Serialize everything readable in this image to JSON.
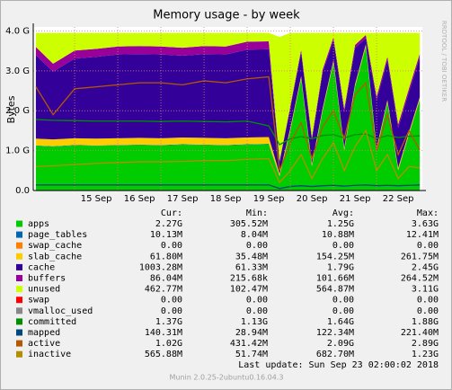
{
  "chart_data": {
    "type": "area",
    "title": "Memory usage - by week",
    "y_label": "Bytes",
    "side_note": "RRDTOOL / TOBI OETIKER",
    "last_update": "Last update:  Sun Sep 23 02:00:02 2018",
    "footer": "Munin 2.0.25-2ubuntu0.16.04.3",
    "stat_headers": [
      "Cur:",
      "Min:",
      "Avg:",
      "Max:"
    ],
    "grid": true,
    "xlim": [
      14.04,
      23.06
    ],
    "ylim": [
      0,
      4.1
    ],
    "xticks": [
      {
        "value": 15,
        "label": "15 Sep"
      },
      {
        "value": 16,
        "label": "16 Sep"
      },
      {
        "value": 17,
        "label": "17 Sep"
      },
      {
        "value": 18,
        "label": "18 Sep"
      },
      {
        "value": 19,
        "label": "19 Sep"
      },
      {
        "value": 20,
        "label": "20 Sep"
      },
      {
        "value": 21,
        "label": "21 Sep"
      },
      {
        "value": 22,
        "label": "22 Sep"
      }
    ],
    "yticks": [
      {
        "value": 0,
        "label": "0.0"
      },
      {
        "value": 1,
        "label": "1.0 G"
      },
      {
        "value": 2,
        "label": "2.0 G"
      },
      {
        "value": 3,
        "label": "3.0 G"
      },
      {
        "value": 4,
        "label": "4.0 G"
      }
    ],
    "x": [
      14.1,
      14.5,
      15,
      15.5,
      16,
      16.5,
      17,
      17.5,
      18,
      18.5,
      19,
      19.5,
      19.75,
      20,
      20.25,
      20.5,
      20.75,
      21,
      21.25,
      21.5,
      21.75,
      22,
      22.25,
      22.5,
      22.75,
      23
    ],
    "series": [
      {
        "name": "apps",
        "style": "area",
        "color": "#00cc00",
        "stats": [
          "2.27G",
          "305.52M",
          "1.25G",
          "3.63G"
        ],
        "values": [
          1.12,
          1.1,
          1.13,
          1.12,
          1.13,
          1.14,
          1.13,
          1.15,
          1.14,
          1.13,
          1.15,
          1.16,
          0.35,
          1.5,
          2.8,
          0.6,
          2.0,
          3.2,
          1.0,
          2.6,
          3.6,
          1.0,
          2.2,
          0.5,
          1.4,
          2.27
        ]
      },
      {
        "name": "page_tables",
        "style": "stack",
        "color": "#0066b3",
        "stats": [
          "10.13M",
          "8.04M",
          "10.88M",
          "12.41M"
        ],
        "values": [
          0.01,
          0.01,
          0.01,
          0.01,
          0.01,
          0.01,
          0.01,
          0.01,
          0.01,
          0.01,
          0.01,
          0.01,
          0.01,
          0.01,
          0.01,
          0.01,
          0.01,
          0.01,
          0.01,
          0.01,
          0.01,
          0.01,
          0.01,
          0.01,
          0.01,
          0.01
        ]
      },
      {
        "name": "swap_cache",
        "style": "stack",
        "color": "#ff8000",
        "stats": [
          "0.00",
          "0.00",
          "0.00",
          "0.00"
        ],
        "values": [
          0,
          0,
          0,
          0,
          0,
          0,
          0,
          0,
          0,
          0,
          0,
          0,
          0,
          0,
          0,
          0,
          0,
          0,
          0,
          0,
          0,
          0,
          0,
          0,
          0,
          0
        ]
      },
      {
        "name": "slab_cache",
        "style": "stack",
        "color": "#ffcc00",
        "stats": [
          "61.80M",
          "35.48M",
          "154.25M",
          "261.75M"
        ],
        "values": [
          0.17,
          0.17,
          0.17,
          0.17,
          0.17,
          0.17,
          0.17,
          0.17,
          0.17,
          0.17,
          0.17,
          0.17,
          0.06,
          0.06,
          0.06,
          0.06,
          0.06,
          0.06,
          0.06,
          0.06,
          0.06,
          0.06,
          0.06,
          0.06,
          0.06,
          0.06
        ]
      },
      {
        "name": "cache",
        "style": "stack",
        "color": "#330099",
        "stats": [
          "1003.28M",
          "61.33M",
          "1.79G",
          "2.45G"
        ],
        "values": [
          2.1,
          1.7,
          2.0,
          2.05,
          2.1,
          2.1,
          2.1,
          2.05,
          2.1,
          2.1,
          2.2,
          2.2,
          0.3,
          0.5,
          0.6,
          0.6,
          0.9,
          0.5,
          0.9,
          0.9,
          0.15,
          1.2,
          1.0,
          1.0,
          1.0,
          1.0
        ]
      },
      {
        "name": "buffers",
        "style": "stack",
        "color": "#990099",
        "stats": [
          "86.04M",
          "215.68k",
          "101.66M",
          "264.52M"
        ],
        "values": [
          0.2,
          0.2,
          0.2,
          0.2,
          0.2,
          0.2,
          0.2,
          0.2,
          0.2,
          0.2,
          0.2,
          0.2,
          0.02,
          0.05,
          0.06,
          0.06,
          0.07,
          0.07,
          0.08,
          0.08,
          0.08,
          0.08,
          0.09,
          0.09,
          0.09,
          0.09
        ]
      },
      {
        "name": "unused",
        "style": "stack",
        "color": "#ccff00",
        "stats": [
          "462.77M",
          "102.47M",
          "564.87M",
          "3.11G"
        ],
        "values": [
          0.35,
          0.77,
          0.44,
          0.4,
          0.34,
          0.33,
          0.34,
          0.37,
          0.33,
          0.34,
          0.22,
          0.21,
          3.11,
          1.83,
          0.42,
          2.62,
          0.91,
          0.11,
          1.9,
          0.3,
          0.05,
          1.6,
          0.59,
          2.29,
          1.39,
          0.52
        ]
      },
      {
        "name": "swap",
        "style": "stack",
        "color": "#ff0000",
        "stats": [
          "0.00",
          "0.00",
          "0.00",
          "0.00"
        ],
        "values": [
          0,
          0,
          0,
          0,
          0,
          0,
          0,
          0,
          0,
          0,
          0,
          0,
          0,
          0,
          0,
          0,
          0,
          0,
          0,
          0,
          0,
          0,
          0,
          0,
          0,
          0
        ]
      },
      {
        "name": "vmalloc_used",
        "style": "line",
        "color": "#888888",
        "stats": [
          "0.00",
          "0.00",
          "0.00",
          "0.00"
        ],
        "values": [
          0,
          0,
          0,
          0,
          0,
          0,
          0,
          0,
          0,
          0,
          0,
          0,
          0,
          0,
          0,
          0,
          0,
          0,
          0,
          0,
          0,
          0,
          0,
          0,
          0,
          0
        ]
      },
      {
        "name": "committed",
        "style": "line",
        "color": "#008f00",
        "stats": [
          "1.37G",
          "1.13G",
          "1.64G",
          "1.88G"
        ],
        "values": [
          1.78,
          1.76,
          1.75,
          1.74,
          1.74,
          1.74,
          1.73,
          1.74,
          1.73,
          1.72,
          1.74,
          1.62,
          1.15,
          1.3,
          1.35,
          1.3,
          1.38,
          1.4,
          1.32,
          1.4,
          1.42,
          1.3,
          1.38,
          1.33,
          1.36,
          1.37
        ]
      },
      {
        "name": "mapped",
        "style": "line",
        "color": "#00487d",
        "stats": [
          "140.31M",
          "28.94M",
          "122.34M",
          "221.40M"
        ],
        "values": [
          0.14,
          0.14,
          0.14,
          0.14,
          0.14,
          0.14,
          0.14,
          0.14,
          0.14,
          0.14,
          0.14,
          0.14,
          0.05,
          0.1,
          0.12,
          0.1,
          0.12,
          0.13,
          0.11,
          0.13,
          0.14,
          0.12,
          0.13,
          0.12,
          0.13,
          0.14
        ]
      },
      {
        "name": "active",
        "style": "line",
        "color": "#b35a00",
        "stats": [
          "1.02G",
          "431.42M",
          "2.09G",
          "2.89G"
        ],
        "values": [
          2.6,
          1.9,
          2.55,
          2.6,
          2.65,
          2.7,
          2.7,
          2.65,
          2.75,
          2.7,
          2.8,
          2.85,
          0.5,
          1.2,
          1.7,
          0.8,
          1.6,
          2.0,
          1.3,
          2.4,
          2.7,
          1.0,
          1.9,
          0.9,
          1.5,
          1.02
        ]
      },
      {
        "name": "inactive",
        "style": "line",
        "color": "#b38f00",
        "stats": [
          "565.88M",
          "51.74M",
          "682.70M",
          "1.23G"
        ],
        "values": [
          0.6,
          0.62,
          0.65,
          0.68,
          0.7,
          0.72,
          0.72,
          0.73,
          0.75,
          0.75,
          0.78,
          0.8,
          0.2,
          0.5,
          0.9,
          0.3,
          0.8,
          1.2,
          0.5,
          1.1,
          1.5,
          0.5,
          0.9,
          0.3,
          0.6,
          0.57
        ]
      }
    ]
  }
}
